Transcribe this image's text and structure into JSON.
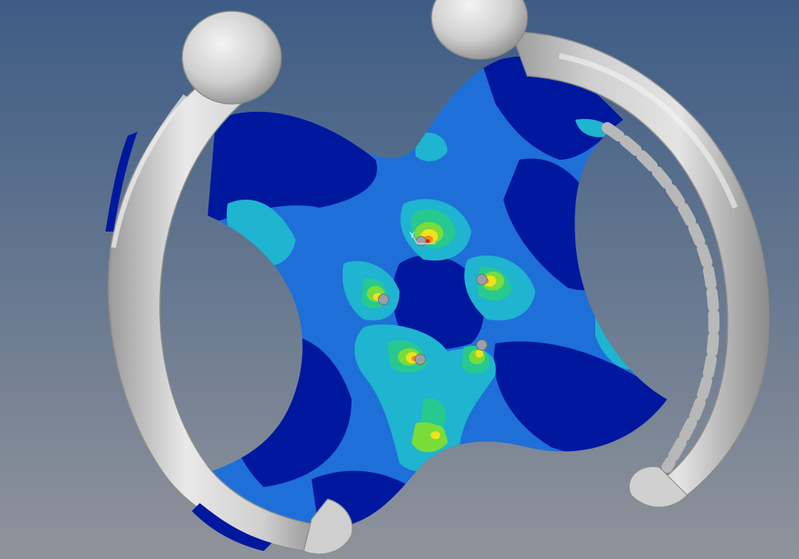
{
  "viewport": {
    "view": "3d-fea-stress-contour",
    "background_top": "#3d5c85",
    "background_bottom": "#8f939a"
  },
  "model": {
    "part": "steering-wheel",
    "rim_color": "#d2d2d2",
    "contour_colors": [
      "#00189e",
      "#1f6fd8",
      "#1fb4cf",
      "#27c98f",
      "#79dc3b",
      "#f0e11a",
      "#f08a1a",
      "#e21b1b"
    ],
    "fastener_count": 6
  },
  "triad": {
    "axis_label": "Y"
  }
}
